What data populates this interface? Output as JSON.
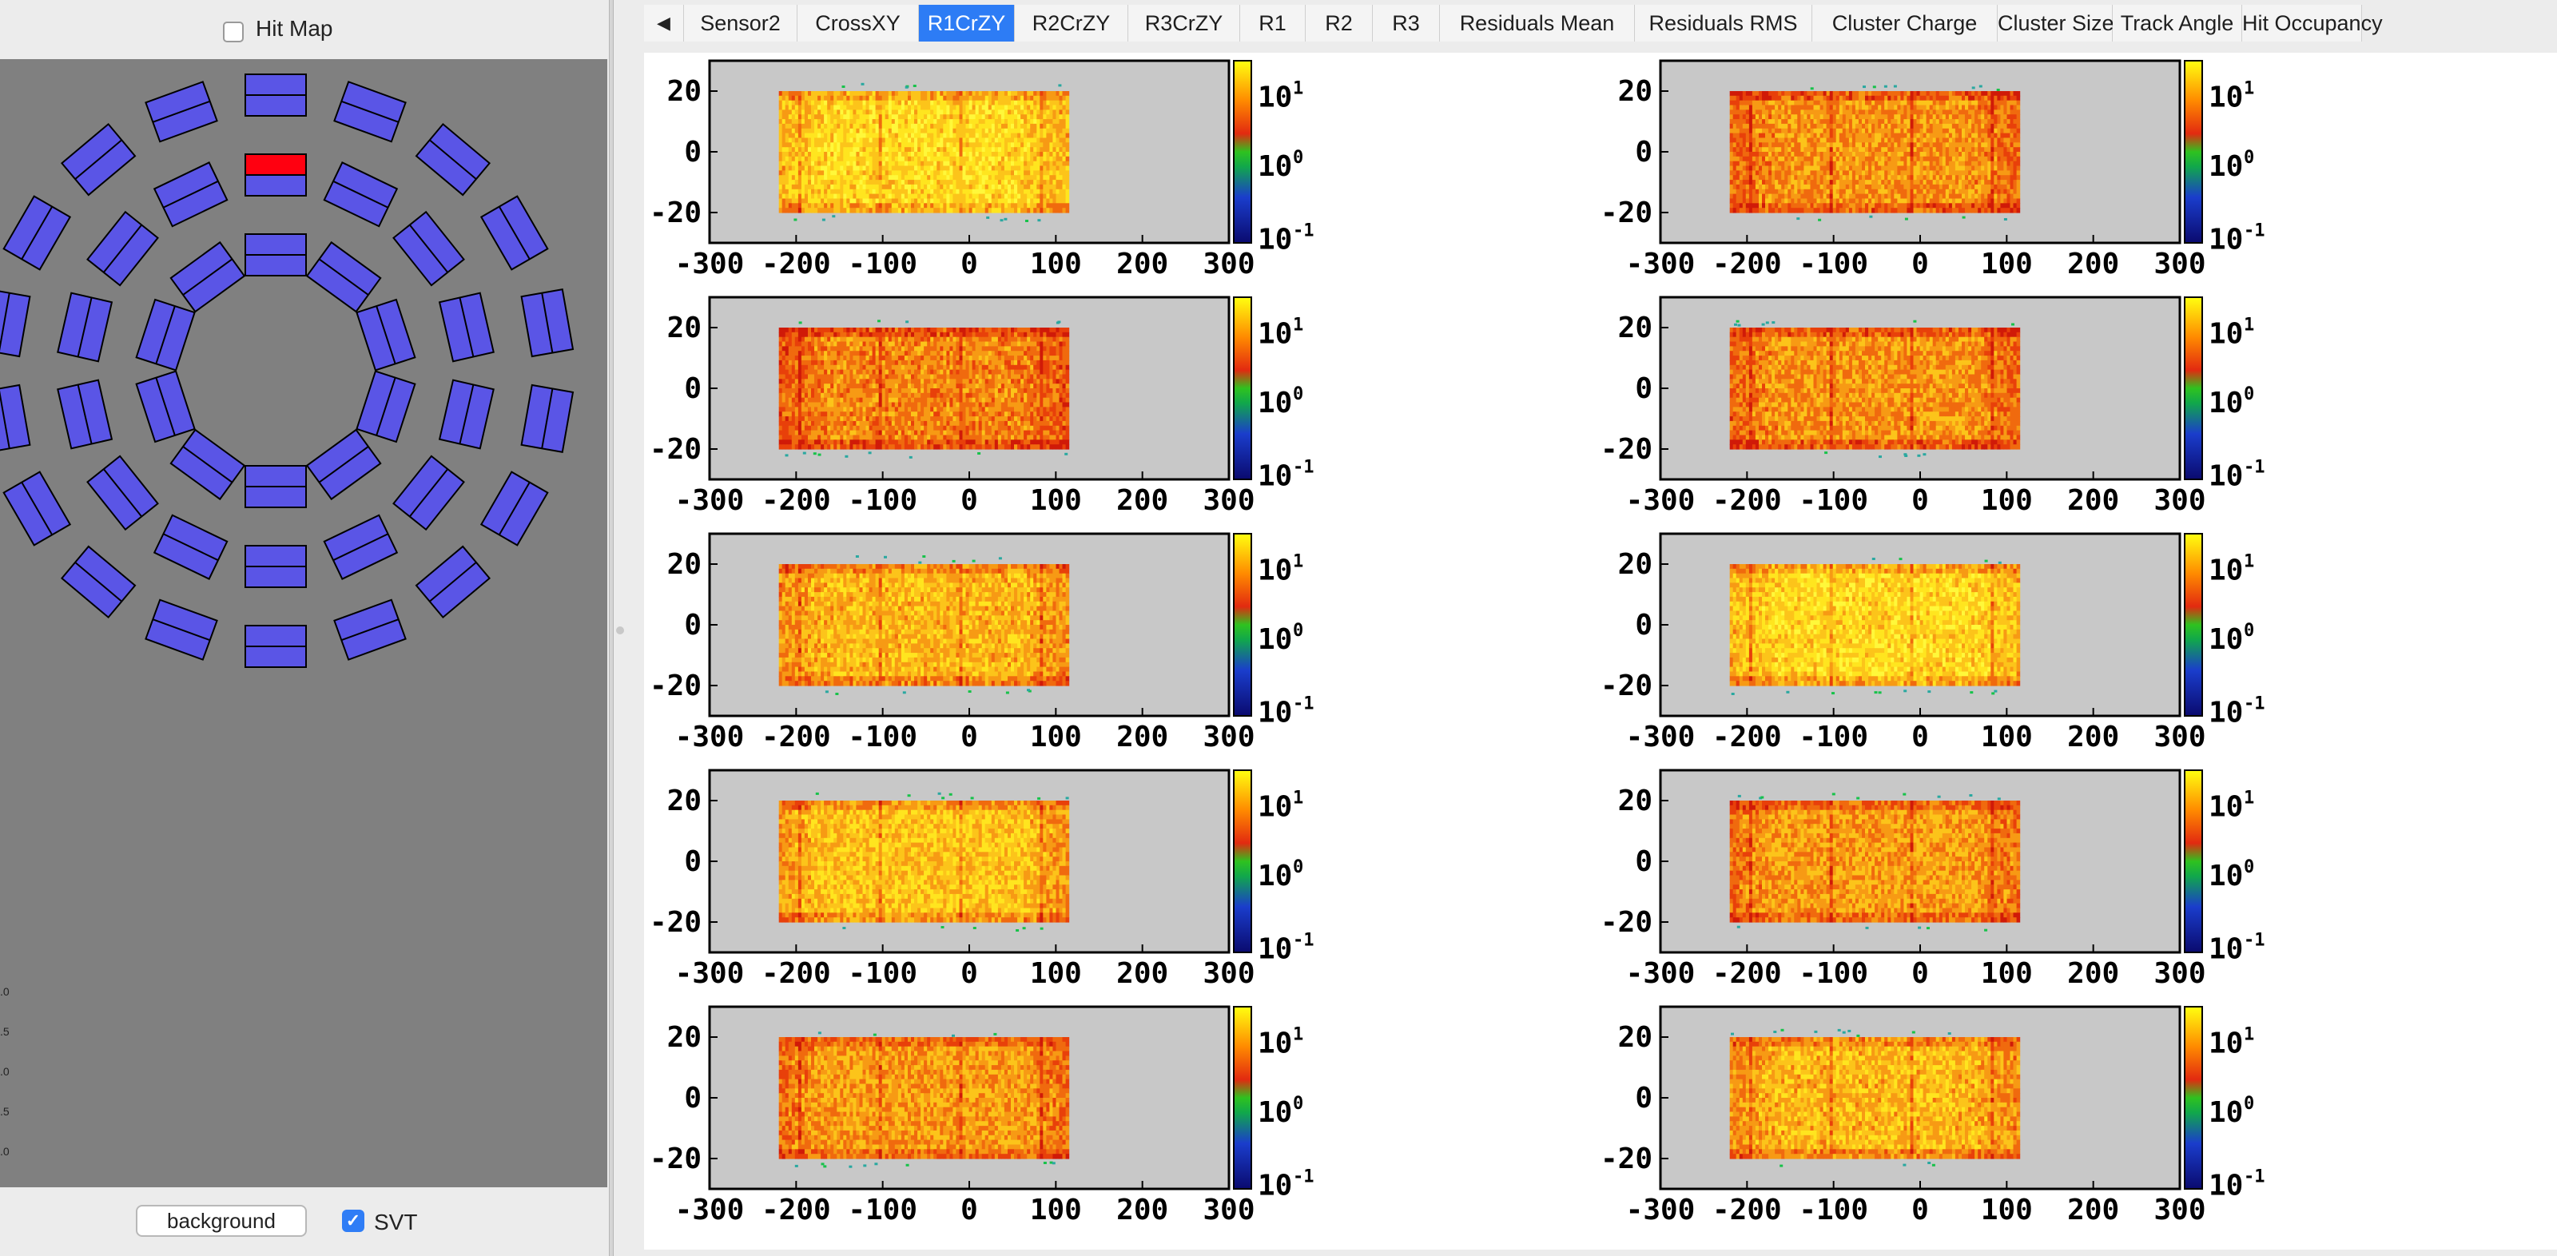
{
  "left_panel": {
    "hitmap_label": "Hit Map",
    "hitmap_checked": false,
    "background_button": "background",
    "svt_label": "SVT",
    "svt_checked": true,
    "tick_labels": [
      ".0",
      ".5",
      ".0",
      ".5",
      ".0"
    ],
    "module_color": "#5a55e6",
    "highlight_color": "#ff0010",
    "background_color": "#808080"
  },
  "tabs": {
    "scroll_left_icon": "◀",
    "items": [
      {
        "label": "Sensor2"
      },
      {
        "label": "CrossXY"
      },
      {
        "label": "R1CrZY",
        "active": true
      },
      {
        "label": "R2CrZY"
      },
      {
        "label": "R3CrZY"
      },
      {
        "label": "R1"
      },
      {
        "label": "R2"
      },
      {
        "label": "R3"
      },
      {
        "label": "Residuals Mean"
      },
      {
        "label": "Residuals RMS"
      },
      {
        "label": "Cluster Charge"
      },
      {
        "label": "Cluster Size"
      },
      {
        "label": "Track Angle"
      },
      {
        "label": "Hit Occupancy"
      }
    ]
  },
  "chart_data": [
    {
      "type": "heatmap",
      "rows": 5,
      "cols": 2,
      "x_ticks": [
        "-300",
        "-200",
        "-100",
        "0",
        "100",
        "200",
        "300"
      ],
      "y_ticks": [
        "20",
        "0",
        "-20"
      ],
      "xlim": [
        -300,
        300
      ],
      "ylim": [
        -30,
        30
      ],
      "data_region": {
        "x": [
          -220,
          115
        ],
        "y": [
          -20,
          20
        ]
      },
      "colorbar": {
        "scale": "log",
        "ticks": [
          "10",
          "10",
          "10"
        ],
        "exponents": [
          "1",
          "0",
          "-1"
        ],
        "range": [
          0.1,
          30
        ]
      },
      "frame_background": "#c8c8c8",
      "pads": [
        {
          "row": 1,
          "col": 1,
          "intensity": 0.85
        },
        {
          "row": 1,
          "col": 2,
          "intensity": 0.55
        },
        {
          "row": 2,
          "col": 1,
          "intensity": 0.5
        },
        {
          "row": 2,
          "col": 2,
          "intensity": 0.55
        },
        {
          "row": 3,
          "col": 1,
          "intensity": 0.7
        },
        {
          "row": 3,
          "col": 2,
          "intensity": 0.85
        },
        {
          "row": 4,
          "col": 1,
          "intensity": 0.75
        },
        {
          "row": 4,
          "col": 2,
          "intensity": 0.6
        },
        {
          "row": 5,
          "col": 1,
          "intensity": 0.6
        },
        {
          "row": 5,
          "col": 2,
          "intensity": 0.7
        }
      ]
    }
  ]
}
